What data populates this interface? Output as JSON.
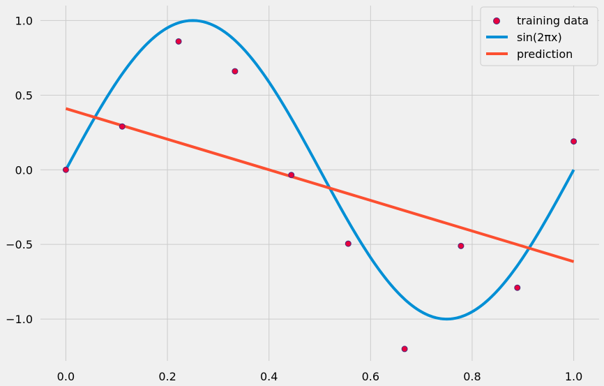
{
  "chart_data": {
    "type": "line",
    "title": "",
    "xlabel": "",
    "ylabel": "",
    "xlim": [
      -0.05,
      1.05
    ],
    "ylim": [
      -1.28,
      1.1
    ],
    "grid": true,
    "legend_position": "top-right",
    "x_ticks": [
      0.0,
      0.2,
      0.4,
      0.6,
      0.8,
      1.0
    ],
    "x_tick_labels": [
      "0.0",
      "0.2",
      "0.4",
      "0.6",
      "0.8",
      "1.0"
    ],
    "y_ticks": [
      1.0,
      0.5,
      0.0,
      -0.5,
      -1.0
    ],
    "y_tick_labels": [
      "1.0",
      "0.5",
      "0.0",
      "−0.5",
      "−1.0"
    ],
    "series": [
      {
        "name": "training data",
        "kind": "scatter",
        "color": "#e8003d",
        "edge_color": "#4a2a7a",
        "x": [
          0.0,
          0.111,
          0.222,
          0.333,
          0.444,
          0.556,
          0.667,
          0.778,
          0.889,
          1.0
        ],
        "y": [
          0.0,
          0.29,
          0.86,
          0.66,
          -0.035,
          -0.495,
          -1.2,
          -0.51,
          -0.79,
          0.19
        ]
      },
      {
        "name": "sin(2πx)",
        "kind": "curve",
        "function": "sin(2*pi*x)",
        "color": "#008fd5",
        "x_range": [
          0.0,
          1.0
        ]
      },
      {
        "name": "prediction",
        "kind": "line",
        "color": "#fc4f30",
        "x": [
          0.0,
          1.0
        ],
        "y": [
          0.41,
          -0.615
        ]
      }
    ]
  }
}
